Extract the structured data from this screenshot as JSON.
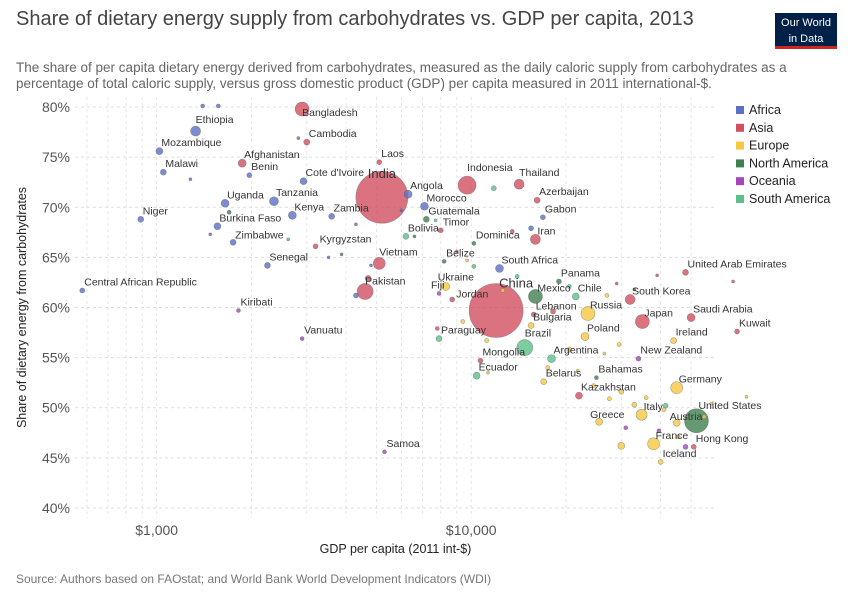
{
  "header": {
    "title": "Share of dietary energy supply from carbohydrates vs. GDP per capita, 2013",
    "subtitle": "The share of per capita dietary energy derived from carbohydrates, measured as the daily caloric supply from carbohydrates as a percentage of total caloric supply, versus gross domestic product (GDP) per capita measured in 2011 international-$.",
    "logo_line1": "Our World",
    "logo_line2": "in Data"
  },
  "footer": {
    "source": "Source: Authors based on FAOstat; and World Bank World Development Indicators (WDI)"
  },
  "colors": {
    "Africa": "#5a70c4",
    "Asia": "#d1505f",
    "Europe": "#f6c942",
    "North America": "#3d7f4e",
    "Oceania": "#a446b8",
    "South America": "#5cc08a"
  },
  "chart_data": {
    "type": "scatter",
    "title": "Share of dietary energy supply from carbohydrates vs. GDP per capita, 2013",
    "xlabel": "GDP per capita (2011 int-$)",
    "ylabel": "Share of dietary energy from carbohydrates",
    "x_scale": "log",
    "xlim": [
      550,
      60000
    ],
    "ylim": [
      39,
      81
    ],
    "x_ticks": [
      {
        "value": 1000,
        "label": "$1,000"
      },
      {
        "value": 10000,
        "label": "$10,000"
      }
    ],
    "y_ticks": [
      {
        "value": 40,
        "label": "40%"
      },
      {
        "value": 45,
        "label": "45%"
      },
      {
        "value": 50,
        "label": "50%"
      },
      {
        "value": 55,
        "label": "55%"
      },
      {
        "value": 60,
        "label": "60%"
      },
      {
        "value": 65,
        "label": "65%"
      },
      {
        "value": 70,
        "label": "70%"
      },
      {
        "value": 75,
        "label": "75%"
      },
      {
        "value": 80,
        "label": "80%"
      }
    ],
    "grid": true,
    "legend_position": "right",
    "legend": [
      "Africa",
      "Asia",
      "Europe",
      "North America",
      "Oceania",
      "South America"
    ],
    "points": [
      {
        "label": "Bangladesh",
        "x": 2900,
        "y": 79.8,
        "region": "Asia",
        "r": 7
      },
      {
        "label": "Ethiopia",
        "x": 1330,
        "y": 77.6,
        "region": "Africa",
        "r": 5
      },
      {
        "label": "Cambodia",
        "x": 3000,
        "y": 76.5,
        "region": "Asia",
        "r": 3
      },
      {
        "label": "Mozambique",
        "x": 1020,
        "y": 75.6,
        "region": "Africa",
        "r": 3.5
      },
      {
        "label": "Afghanistan",
        "x": 1870,
        "y": 74.4,
        "region": "Asia",
        "r": 4
      },
      {
        "label": "Laos",
        "x": 5100,
        "y": 74.5,
        "region": "Asia",
        "r": 2.5
      },
      {
        "label": "Malawi",
        "x": 1050,
        "y": 73.5,
        "region": "Africa",
        "r": 3
      },
      {
        "label": "Benin",
        "x": 1970,
        "y": 73.2,
        "region": "Africa",
        "r": 2.5
      },
      {
        "label": "Cote d'Ivoire",
        "x": 2930,
        "y": 72.6,
        "region": "Africa",
        "r": 3.5
      },
      {
        "label": "India",
        "x": 5200,
        "y": 71.0,
        "region": "Asia",
        "r": 26
      },
      {
        "label": "Indonesia",
        "x": 9700,
        "y": 72.2,
        "region": "Asia",
        "r": 9
      },
      {
        "label": "Thailand",
        "x": 14200,
        "y": 72.3,
        "region": "Asia",
        "r": 5
      },
      {
        "label": "Angola",
        "x": 6300,
        "y": 71.3,
        "region": "Africa",
        "r": 4
      },
      {
        "label": "Azerbaijan",
        "x": 16200,
        "y": 70.7,
        "region": "Asia",
        "r": 3
      },
      {
        "label": "Uganda",
        "x": 1650,
        "y": 70.4,
        "region": "Africa",
        "r": 4
      },
      {
        "label": "Tanzania",
        "x": 2360,
        "y": 70.6,
        "region": "Africa",
        "r": 4.5
      },
      {
        "label": "Morocco",
        "x": 7100,
        "y": 70.1,
        "region": "Africa",
        "r": 4
      },
      {
        "label": "Kenya",
        "x": 2700,
        "y": 69.2,
        "region": "Africa",
        "r": 4
      },
      {
        "label": "Zambia",
        "x": 3600,
        "y": 69.1,
        "region": "Africa",
        "r": 3
      },
      {
        "label": "Guatemala",
        "x": 7200,
        "y": 68.8,
        "region": "North America",
        "r": 3
      },
      {
        "label": "Gabon",
        "x": 16900,
        "y": 69.0,
        "region": "Africa",
        "r": 2.5
      },
      {
        "label": "Niger",
        "x": 890,
        "y": 68.8,
        "region": "Africa",
        "r": 3
      },
      {
        "label": "Burkina Faso",
        "x": 1560,
        "y": 68.1,
        "region": "Africa",
        "r": 3.5
      },
      {
        "label": "Timor",
        "x": 8000,
        "y": 67.7,
        "region": "Asia",
        "r": 2.5
      },
      {
        "label": "Iran",
        "x": 16000,
        "y": 66.8,
        "region": "Asia",
        "r": 5
      },
      {
        "label": "Bolivia",
        "x": 6200,
        "y": 67.1,
        "region": "South America",
        "r": 3
      },
      {
        "label": "Dominica",
        "x": 10200,
        "y": 66.4,
        "region": "North America",
        "r": 2
      },
      {
        "label": "Zimbabwe",
        "x": 1750,
        "y": 66.5,
        "region": "Africa",
        "r": 3
      },
      {
        "label": "Kyrgyzstan",
        "x": 3200,
        "y": 66.1,
        "region": "Asia",
        "r": 2.5
      },
      {
        "label": "Vietnam",
        "x": 5100,
        "y": 64.4,
        "region": "Asia",
        "r": 6
      },
      {
        "label": "Belize",
        "x": 8200,
        "y": 64.6,
        "region": "North America",
        "r": 2
      },
      {
        "label": "South Africa",
        "x": 12300,
        "y": 63.9,
        "region": "Africa",
        "r": 4
      },
      {
        "label": "Senegal",
        "x": 2250,
        "y": 64.2,
        "region": "Africa",
        "r": 3
      },
      {
        "label": "United Arab Emirates",
        "x": 48000,
        "y": 63.5,
        "region": "Asia",
        "r": 3
      },
      {
        "label": "Panama",
        "x": 19000,
        "y": 62.6,
        "region": "North America",
        "r": 2.5
      },
      {
        "label": "Ukraine",
        "x": 8300,
        "y": 62.1,
        "region": "Europe",
        "r": 4
      },
      {
        "label": "Pakistan",
        "x": 4600,
        "y": 61.6,
        "region": "Asia",
        "r": 8
      },
      {
        "label": "Central African Republic",
        "x": 580,
        "y": 61.7,
        "region": "Africa",
        "r": 2.5
      },
      {
        "label": "Fiji",
        "x": 7900,
        "y": 61.4,
        "region": "Oceania",
        "r": 2
      },
      {
        "label": "China",
        "x": 12000,
        "y": 59.7,
        "region": "Asia",
        "r": 27
      },
      {
        "label": "Mexico",
        "x": 16000,
        "y": 61.1,
        "region": "North America",
        "r": 7
      },
      {
        "label": "Chile",
        "x": 21500,
        "y": 61.1,
        "region": "South America",
        "r": 3.5
      },
      {
        "label": "South Korea",
        "x": 32000,
        "y": 60.8,
        "region": "Asia",
        "r": 5
      },
      {
        "label": "Jordan",
        "x": 8700,
        "y": 60.8,
        "region": "Asia",
        "r": 2.5
      },
      {
        "label": "Russia",
        "x": 23500,
        "y": 59.4,
        "region": "Europe",
        "r": 7
      },
      {
        "label": "Lebanon",
        "x": 15800,
        "y": 59.3,
        "region": "Asia",
        "r": 2.5
      },
      {
        "label": "Kiribati",
        "x": 1820,
        "y": 59.7,
        "region": "Oceania",
        "r": 2
      },
      {
        "label": "Saudi Arabia",
        "x": 50000,
        "y": 59.0,
        "region": "Asia",
        "r": 4
      },
      {
        "label": "Japan",
        "x": 35000,
        "y": 58.6,
        "region": "Asia",
        "r": 7
      },
      {
        "label": "Bulgaria",
        "x": 15500,
        "y": 58.2,
        "region": "Europe",
        "r": 3
      },
      {
        "label": "Kuwait",
        "x": 70000,
        "y": 57.6,
        "region": "Asia",
        "r": 2.5
      },
      {
        "label": "Poland",
        "x": 23000,
        "y": 57.1,
        "region": "Europe",
        "r": 4
      },
      {
        "label": "Vanuatu",
        "x": 2900,
        "y": 56.9,
        "region": "Oceania",
        "r": 2
      },
      {
        "label": "Ireland",
        "x": 44000,
        "y": 56.7,
        "region": "Europe",
        "r": 3
      },
      {
        "label": "Paraguay",
        "x": 7900,
        "y": 56.9,
        "region": "South America",
        "r": 3
      },
      {
        "label": "Brazil",
        "x": 14800,
        "y": 56.0,
        "region": "South America",
        "r": 8
      },
      {
        "label": "Argentina",
        "x": 18000,
        "y": 54.9,
        "region": "South America",
        "r": 4
      },
      {
        "label": "Mongolia",
        "x": 10700,
        "y": 54.7,
        "region": "Asia",
        "r": 2.5
      },
      {
        "label": "New Zealand",
        "x": 34000,
        "y": 54.9,
        "region": "Oceania",
        "r": 2.5
      },
      {
        "label": "Ecuador",
        "x": 10400,
        "y": 53.2,
        "region": "South America",
        "r": 3.5
      },
      {
        "label": "Bahamas",
        "x": 25000,
        "y": 53.0,
        "region": "North America",
        "r": 2
      },
      {
        "label": "Belarus",
        "x": 17000,
        "y": 52.6,
        "region": "Europe",
        "r": 3
      },
      {
        "label": "Germany",
        "x": 45000,
        "y": 52.0,
        "region": "Europe",
        "r": 6
      },
      {
        "label": "Kazakhstan",
        "x": 22000,
        "y": 51.2,
        "region": "Asia",
        "r": 3.5
      },
      {
        "label": "Italy",
        "x": 34800,
        "y": 49.3,
        "region": "Europe",
        "r": 5.5
      },
      {
        "label": "United States",
        "x": 52000,
        "y": 48.7,
        "region": "North America",
        "r": 12
      },
      {
        "label": "Greece",
        "x": 25500,
        "y": 48.6,
        "region": "Europe",
        "r": 3.5
      },
      {
        "label": "Austria",
        "x": 45000,
        "y": 48.5,
        "region": "Europe",
        "r": 3.5
      },
      {
        "label": "France",
        "x": 38000,
        "y": 46.4,
        "region": "Europe",
        "r": 6
      },
      {
        "label": "Hong Kong",
        "x": 51000,
        "y": 46.1,
        "region": "Asia",
        "r": 2.5
      },
      {
        "label": "Samoa",
        "x": 5300,
        "y": 45.6,
        "region": "Oceania",
        "r": 2
      },
      {
        "label": "Iceland",
        "x": 40000,
        "y": 44.6,
        "region": "Europe",
        "r": 2.5
      },
      {
        "x": 1400,
        "y": 80.1,
        "region": "Africa",
        "r": 2
      },
      {
        "x": 1570,
        "y": 80.1,
        "region": "Africa",
        "r": 2
      },
      {
        "x": 1280,
        "y": 72.8,
        "region": "Africa",
        "r": 1.5
      },
      {
        "x": 2820,
        "y": 76.9,
        "region": "Africa",
        "r": 1.5
      },
      {
        "x": 1480,
        "y": 67.3,
        "region": "Africa",
        "r": 1.5
      },
      {
        "x": 1700,
        "y": 69.5,
        "region": "North America",
        "r": 2
      },
      {
        "x": 3520,
        "y": 65.0,
        "region": "Africa",
        "r": 1.5
      },
      {
        "x": 2620,
        "y": 66.8,
        "region": "South America",
        "r": 1.5
      },
      {
        "x": 3870,
        "y": 65.3,
        "region": "North America",
        "r": 1.5
      },
      {
        "x": 4300,
        "y": 68.3,
        "region": "Oceania",
        "r": 1.5
      },
      {
        "x": 4800,
        "y": 64.2,
        "region": "Africa",
        "r": 1.5
      },
      {
        "x": 6600,
        "y": 67.1,
        "region": "North America",
        "r": 1.5
      },
      {
        "x": 7700,
        "y": 68.7,
        "region": "South America",
        "r": 1.5
      },
      {
        "x": 6000,
        "y": 69.7,
        "region": "Africa",
        "r": 1.5
      },
      {
        "x": 9000,
        "y": 65.6,
        "region": "Asia",
        "r": 1.5
      },
      {
        "x": 11800,
        "y": 71.9,
        "region": "South America",
        "r": 2.5
      },
      {
        "x": 13500,
        "y": 67.6,
        "region": "Asia",
        "r": 2
      },
      {
        "x": 15500,
        "y": 67.9,
        "region": "Africa",
        "r": 2.5
      },
      {
        "x": 10200,
        "y": 64.1,
        "region": "South America",
        "r": 2
      },
      {
        "x": 9700,
        "y": 64.7,
        "region": "Europe",
        "r": 1.5
      },
      {
        "x": 4300,
        "y": 61.2,
        "region": "Africa",
        "r": 2.5
      },
      {
        "x": 4700,
        "y": 62.9,
        "region": "Asia",
        "r": 3
      },
      {
        "x": 7800,
        "y": 57.9,
        "region": "Asia",
        "r": 2
      },
      {
        "x": 9400,
        "y": 58.6,
        "region": "Europe",
        "r": 2
      },
      {
        "x": 14000,
        "y": 63.1,
        "region": "South America",
        "r": 2
      },
      {
        "x": 12600,
        "y": 61.7,
        "region": "Europe",
        "r": 2
      },
      {
        "x": 18200,
        "y": 59.6,
        "region": "Asia",
        "r": 2.5
      },
      {
        "x": 20500,
        "y": 62.1,
        "region": "South America",
        "r": 2
      },
      {
        "x": 27000,
        "y": 61.2,
        "region": "Europe",
        "r": 2
      },
      {
        "x": 29000,
        "y": 62.4,
        "region": "Asia",
        "r": 1.5
      },
      {
        "x": 39000,
        "y": 63.2,
        "region": "Asia",
        "r": 1.5
      },
      {
        "x": 33000,
        "y": 61.8,
        "region": "North America",
        "r": 1.5
      },
      {
        "x": 68000,
        "y": 62.6,
        "region": "Asia",
        "r": 1.5
      },
      {
        "x": 11200,
        "y": 56.7,
        "region": "Europe",
        "r": 2
      },
      {
        "x": 20500,
        "y": 55.8,
        "region": "Europe",
        "r": 2.5
      },
      {
        "x": 26500,
        "y": 55.4,
        "region": "Europe",
        "r": 1.5
      },
      {
        "x": 29500,
        "y": 56.3,
        "region": "Europe",
        "r": 2
      },
      {
        "x": 17500,
        "y": 54.0,
        "region": "Europe",
        "r": 2
      },
      {
        "x": 21800,
        "y": 53.7,
        "region": "Europe",
        "r": 1.5
      },
      {
        "x": 24500,
        "y": 52.2,
        "region": "Europe",
        "r": 2
      },
      {
        "x": 27500,
        "y": 50.9,
        "region": "Europe",
        "r": 2
      },
      {
        "x": 30000,
        "y": 51.6,
        "region": "Europe",
        "r": 2.5
      },
      {
        "x": 33000,
        "y": 50.3,
        "region": "Europe",
        "r": 2.5
      },
      {
        "x": 36000,
        "y": 51.0,
        "region": "Europe",
        "r": 2
      },
      {
        "x": 41000,
        "y": 49.8,
        "region": "Europe",
        "r": 2
      },
      {
        "x": 41500,
        "y": 50.2,
        "region": "South America",
        "r": 2.5
      },
      {
        "x": 39500,
        "y": 47.7,
        "region": "Oceania",
        "r": 2
      },
      {
        "x": 31000,
        "y": 48.0,
        "region": "Oceania",
        "r": 2
      },
      {
        "x": 30000,
        "y": 46.2,
        "region": "Europe",
        "r": 3.5
      },
      {
        "x": 45500,
        "y": 47.1,
        "region": "Europe",
        "r": 2
      },
      {
        "x": 48000,
        "y": 46.1,
        "region": "Oceania",
        "r": 2.5
      },
      {
        "x": 55000,
        "y": 49.1,
        "region": "Europe",
        "r": 2
      },
      {
        "x": 58000,
        "y": 50.4,
        "region": "Europe",
        "r": 1.5
      },
      {
        "x": 75000,
        "y": 51.1,
        "region": "Europe",
        "r": 1.5
      },
      {
        "x": 11300,
        "y": 53.5,
        "region": "Europe",
        "r": 1.5
      }
    ]
  }
}
